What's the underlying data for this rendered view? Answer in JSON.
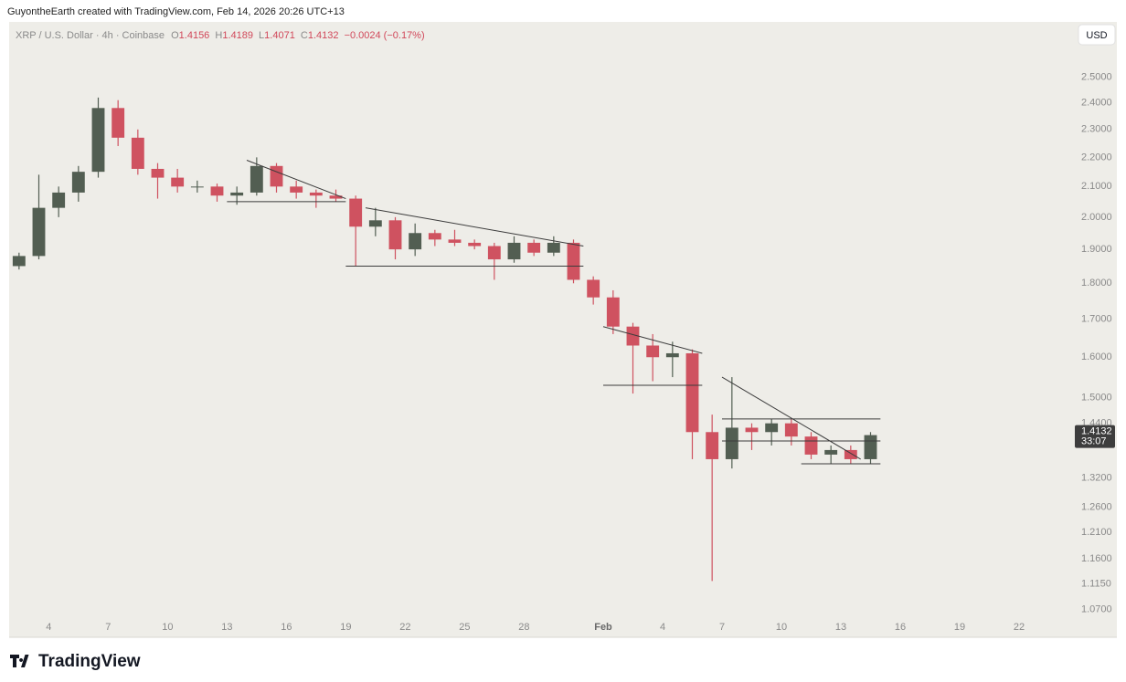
{
  "header": {
    "credit": "GuyontheEarth created with TradingView.com, Feb 14, 2026 20:26 UTC+13"
  },
  "chart_data": {
    "type": "candlestick",
    "symbol": "XRP / U.S. Dollar · 4h · Coinbase",
    "quote": {
      "open_label": "O",
      "open": 1.4156,
      "high_label": "H",
      "high": 1.4189,
      "low_label": "L",
      "low": 1.4071,
      "close_label": "C",
      "close": 1.4132,
      "change": "−0.0024 (−0.17%)"
    },
    "countdown": "33:07",
    "currency": "USD",
    "log_scale": true,
    "grid": false,
    "up_color": "#525e52",
    "down_color": "#cf5260",
    "line_color": "#3c3c3c",
    "x": [
      "2026-01-02",
      "2026-01-03",
      "2026-01-04",
      "2026-01-05",
      "2026-01-06",
      "2026-01-07",
      "2026-01-08",
      "2026-01-09",
      "2026-01-10",
      "2026-01-11",
      "2026-01-12",
      "2026-01-13",
      "2026-01-14",
      "2026-01-15",
      "2026-01-16",
      "2026-01-17",
      "2026-01-18",
      "2026-01-19",
      "2026-01-20",
      "2026-01-21",
      "2026-01-22",
      "2026-01-23",
      "2026-01-24",
      "2026-01-25",
      "2026-01-26",
      "2026-01-27",
      "2026-01-28",
      "2026-01-29",
      "2026-01-30",
      "2026-01-31",
      "2026-02-01",
      "2026-02-02",
      "2026-02-03",
      "2026-02-04",
      "2026-02-05",
      "2026-02-06",
      "2026-02-07",
      "2026-02-08",
      "2026-02-09",
      "2026-02-10",
      "2026-02-11",
      "2026-02-12",
      "2026-02-13",
      "2026-02-14"
    ],
    "open": [
      1.85,
      1.88,
      2.03,
      2.08,
      2.15,
      2.38,
      2.27,
      2.16,
      2.13,
      2.1,
      2.1,
      2.07,
      2.08,
      2.17,
      2.1,
      2.08,
      2.07,
      2.06,
      1.97,
      1.99,
      1.9,
      1.95,
      1.93,
      1.92,
      1.91,
      1.87,
      1.92,
      1.89,
      1.92,
      1.81,
      1.76,
      1.68,
      1.63,
      1.6,
      1.61,
      1.42,
      1.36,
      1.43,
      1.42,
      1.44,
      1.41,
      1.37,
      1.38,
      1.36
    ],
    "high": [
      1.89,
      2.14,
      2.1,
      2.17,
      2.42,
      2.41,
      2.3,
      2.18,
      2.16,
      2.12,
      2.11,
      2.1,
      2.2,
      2.18,
      2.12,
      2.09,
      2.09,
      2.07,
      2.03,
      2.0,
      1.98,
      1.96,
      1.96,
      1.93,
      1.92,
      1.94,
      1.93,
      1.94,
      1.93,
      1.82,
      1.78,
      1.69,
      1.66,
      1.64,
      1.62,
      1.46,
      1.55,
      1.44,
      1.45,
      1.45,
      1.42,
      1.39,
      1.39,
      1.42
    ],
    "low": [
      1.84,
      1.87,
      2.0,
      2.05,
      2.13,
      2.24,
      2.14,
      2.06,
      2.08,
      2.08,
      2.05,
      2.04,
      2.07,
      2.08,
      2.06,
      2.03,
      2.05,
      1.85,
      1.94,
      1.87,
      1.88,
      1.91,
      1.91,
      1.9,
      1.81,
      1.86,
      1.88,
      1.88,
      1.8,
      1.74,
      1.66,
      1.51,
      1.54,
      1.55,
      1.36,
      1.12,
      1.34,
      1.38,
      1.39,
      1.39,
      1.36,
      1.35,
      1.35,
      1.35
    ],
    "close": [
      1.88,
      2.03,
      2.08,
      2.15,
      2.38,
      2.27,
      2.16,
      2.13,
      2.1,
      2.1,
      2.07,
      2.08,
      2.17,
      2.1,
      2.08,
      2.07,
      2.06,
      1.97,
      1.99,
      1.9,
      1.95,
      1.93,
      1.92,
      1.91,
      1.87,
      1.92,
      1.89,
      1.92,
      1.81,
      1.76,
      1.68,
      1.63,
      1.6,
      1.61,
      1.42,
      1.36,
      1.43,
      1.42,
      1.44,
      1.41,
      1.37,
      1.38,
      1.36,
      1.4132
    ],
    "drawings": [
      {
        "x": [
          "2026-01-14",
          "2026-01-19"
        ],
        "y": [
          2.19,
          2.06
        ]
      },
      {
        "x": [
          "2026-01-13",
          "2026-01-19"
        ],
        "y": [
          2.05,
          2.05
        ]
      },
      {
        "x": [
          "2026-01-20",
          "2026-01-31"
        ],
        "y": [
          2.03,
          1.91
        ]
      },
      {
        "x": [
          "2026-01-19",
          "2026-01-31"
        ],
        "y": [
          1.85,
          1.85
        ]
      },
      {
        "x": [
          "2026-02-01",
          "2026-02-06"
        ],
        "y": [
          1.68,
          1.61
        ]
      },
      {
        "x": [
          "2026-02-01",
          "2026-02-06"
        ],
        "y": [
          1.53,
          1.53
        ]
      },
      {
        "x": [
          "2026-02-07",
          "2026-02-14"
        ],
        "y": [
          1.55,
          1.36
        ]
      },
      {
        "x": [
          "2026-02-07",
          "2026-02-15"
        ],
        "y": [
          1.45,
          1.45
        ]
      },
      {
        "x": [
          "2026-02-07",
          "2026-02-15"
        ],
        "y": [
          1.4,
          1.4
        ]
      },
      {
        "x": [
          "2026-02-11",
          "2026-02-15"
        ],
        "y": [
          1.35,
          1.35
        ]
      }
    ],
    "xlim": [
      "2026-01-02",
      "2026-02-25"
    ],
    "xticks": [
      {
        "value": "2026-01-04",
        "label": "4"
      },
      {
        "value": "2026-01-07",
        "label": "7"
      },
      {
        "value": "2026-01-10",
        "label": "10"
      },
      {
        "value": "2026-01-13",
        "label": "13"
      },
      {
        "value": "2026-01-16",
        "label": "16"
      },
      {
        "value": "2026-01-19",
        "label": "19"
      },
      {
        "value": "2026-01-22",
        "label": "22"
      },
      {
        "value": "2026-01-25",
        "label": "25"
      },
      {
        "value": "2026-01-28",
        "label": "28"
      },
      {
        "value": "2026-02-01",
        "label": "Feb"
      },
      {
        "value": "2026-02-04",
        "label": "4"
      },
      {
        "value": "2026-02-07",
        "label": "7"
      },
      {
        "value": "2026-02-10",
        "label": "10"
      },
      {
        "value": "2026-02-13",
        "label": "13"
      },
      {
        "value": "2026-02-16",
        "label": "16"
      },
      {
        "value": "2026-02-19",
        "label": "19"
      },
      {
        "value": "2026-02-22",
        "label": "22"
      }
    ],
    "ylim": [
      1.024,
      2.73
    ],
    "yticks": [
      {
        "value": 2.5,
        "label": "2.5000"
      },
      {
        "value": 2.4,
        "label": "2.4000"
      },
      {
        "value": 2.3,
        "label": "2.3000"
      },
      {
        "value": 2.2,
        "label": "2.2000"
      },
      {
        "value": 2.1,
        "label": "2.1000"
      },
      {
        "value": 2.0,
        "label": "2.0000"
      },
      {
        "value": 1.9,
        "label": "1.9000"
      },
      {
        "value": 1.8,
        "label": "1.8000"
      },
      {
        "value": 1.7,
        "label": "1.7000"
      },
      {
        "value": 1.6,
        "label": "1.6000"
      },
      {
        "value": 1.5,
        "label": "1.5000"
      },
      {
        "value": 1.44,
        "label": "1.4400"
      },
      {
        "value": 1.32,
        "label": "1.3200"
      },
      {
        "value": 1.26,
        "label": "1.2600"
      },
      {
        "value": 1.21,
        "label": "1.2100"
      },
      {
        "value": 1.16,
        "label": "1.1600"
      },
      {
        "value": 1.115,
        "label": "1.1150"
      },
      {
        "value": 1.07,
        "label": "1.0700"
      }
    ]
  },
  "footer": {
    "brand": "TradingView"
  }
}
